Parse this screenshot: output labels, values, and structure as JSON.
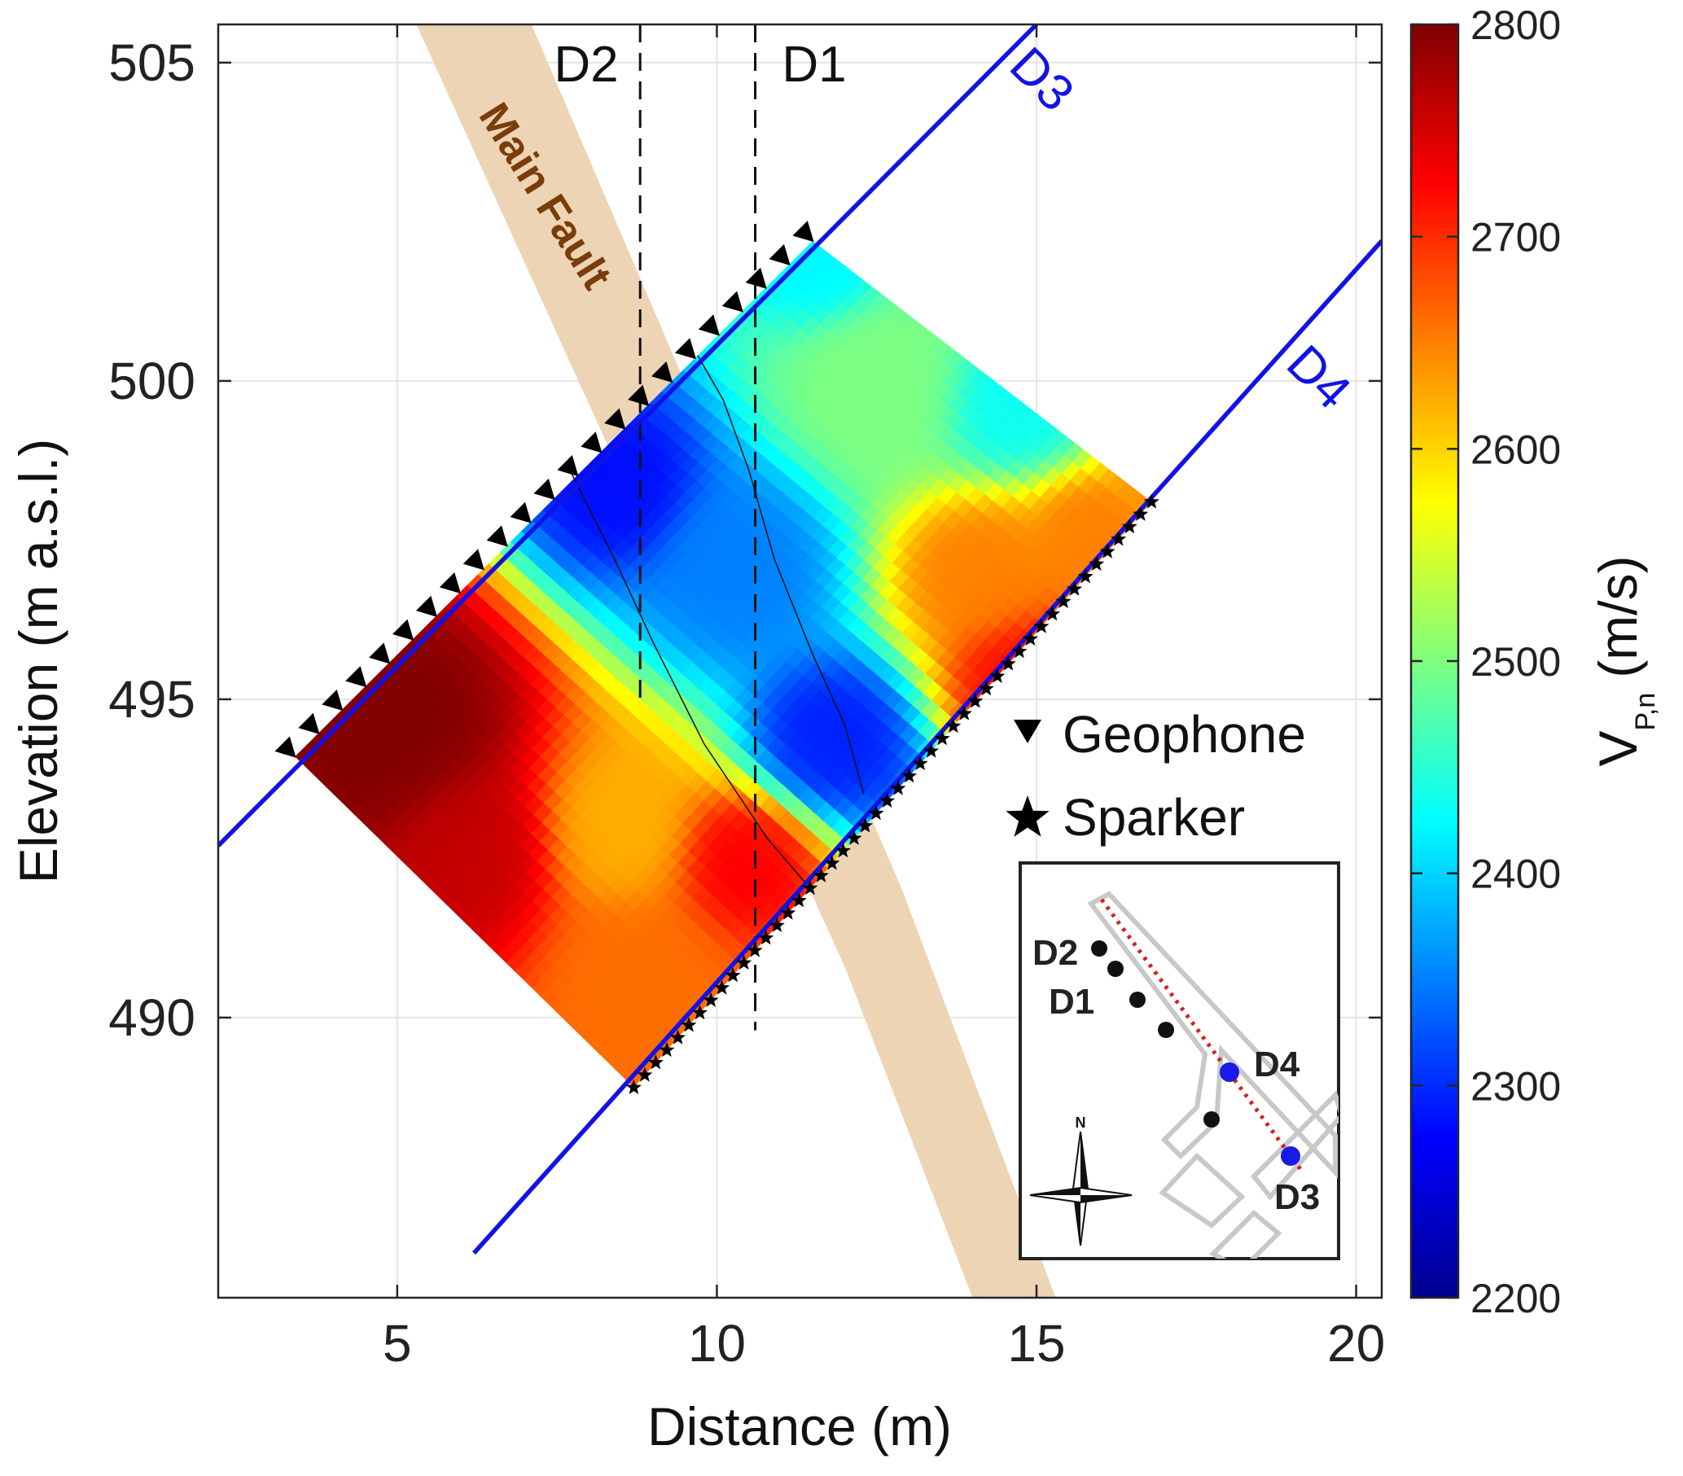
{
  "chart_data": {
    "type": "heatmap",
    "title": "",
    "xlabel": "Distance (m)",
    "ylabel": "Elevation (m a.s.l.)",
    "xlim": [
      2.2,
      20.4
    ],
    "ylim": [
      485.6,
      505.6
    ],
    "x_ticks": [
      5,
      10,
      15,
      20
    ],
    "y_ticks": [
      490,
      495,
      500,
      505
    ],
    "grid": true,
    "colorbar": {
      "label_main": "V",
      "label_sub": "P,n",
      "label_unit": "(m/s)",
      "range": [
        2200,
        2800
      ],
      "ticks": [
        2200,
        2300,
        2400,
        2500,
        2600,
        2700,
        2800
      ],
      "colormap": "jet"
    },
    "panel": {
      "geophone_start": [
        3.4,
        494.1
      ],
      "geophone_end": [
        11.5,
        502.2
      ],
      "sparker_start": [
        8.7,
        488.9
      ],
      "sparker_end": [
        16.8,
        498.1
      ]
    },
    "velocity_anomalies": [
      {
        "x": 5.0,
        "y": 494.5,
        "v": 2800,
        "r": 1.6
      },
      {
        "x": 6.2,
        "y": 492.7,
        "v": 2760,
        "r": 1.3
      },
      {
        "x": 8.4,
        "y": 493.0,
        "v": 2620,
        "r": 1.2
      },
      {
        "x": 10.5,
        "y": 492.5,
        "v": 2730,
        "r": 1.0
      },
      {
        "x": 8.7,
        "y": 490.6,
        "v": 2660,
        "r": 1.2
      },
      {
        "x": 8.5,
        "y": 498.3,
        "v": 2280,
        "r": 1.1
      },
      {
        "x": 10.3,
        "y": 497.1,
        "v": 2350,
        "r": 1.3
      },
      {
        "x": 11.8,
        "y": 494.3,
        "v": 2290,
        "r": 1.1
      },
      {
        "x": 12.5,
        "y": 499.9,
        "v": 2500,
        "r": 1.4
      },
      {
        "x": 11.6,
        "y": 501.8,
        "v": 2420,
        "r": 0.9
      },
      {
        "x": 14.6,
        "y": 499.6,
        "v": 2430,
        "r": 1.0
      },
      {
        "x": 14.1,
        "y": 497.0,
        "v": 2650,
        "r": 1.1
      },
      {
        "x": 15.8,
        "y": 497.6,
        "v": 2650,
        "r": 0.8
      },
      {
        "x": 14.8,
        "y": 495.3,
        "v": 2720,
        "r": 1.0
      }
    ],
    "tomography_velocity_range": [
      2200,
      2800
    ],
    "boreholes": [
      {
        "label": "D2",
        "x": 8.8,
        "y_top": 505.6,
        "y_bottom": 494.9,
        "style": "dashed"
      },
      {
        "label": "D1",
        "x": 10.6,
        "y_top": 505.6,
        "y_bottom": 489.8,
        "style": "dashed"
      }
    ],
    "boreholes_inclined": [
      {
        "label": "D3",
        "x0": 2.2,
        "y0": 492.7,
        "x1": 15.0,
        "y1": 505.6
      },
      {
        "label": "D4",
        "x0": 6.2,
        "y0": 486.3,
        "x1": 20.4,
        "y1": 502.2
      }
    ],
    "main_fault": {
      "label": "Main Fault",
      "color": "#ecd4b5",
      "polygon": [
        [
          5.3,
          505.6
        ],
        [
          7.1,
          505.6
        ],
        [
          12.9,
          492.0
        ],
        [
          15.3,
          485.6
        ],
        [
          14.0,
          485.6
        ],
        [
          12.0,
          490.8
        ]
      ]
    },
    "contours": [
      [
        [
          7.7,
          498.6
        ],
        [
          8.4,
          497.2
        ],
        [
          9.0,
          495.9
        ],
        [
          9.8,
          494.3
        ],
        [
          10.8,
          492.8
        ],
        [
          11.4,
          492.1
        ]
      ],
      [
        [
          9.7,
          500.4
        ],
        [
          10.1,
          499.7
        ],
        [
          10.5,
          498.6
        ],
        [
          10.9,
          497.2
        ],
        [
          11.5,
          495.7
        ],
        [
          12.0,
          494.6
        ],
        [
          12.3,
          493.5
        ]
      ]
    ],
    "legend": [
      {
        "marker": "triangle-down",
        "label": "Geophone"
      },
      {
        "marker": "star",
        "label": "Sparker"
      }
    ]
  },
  "inset": {
    "labels": [
      "D2",
      "D1",
      "D4",
      "D3"
    ],
    "compass": "N"
  },
  "labels": {
    "d1": "D1",
    "d2": "D2",
    "d3": "D3",
    "d4": "D4",
    "main_fault": "Main Fault"
  },
  "colors": {
    "borehole_line": "#1212e6",
    "fault": "#ecd4b5",
    "fault_text": "#7a3c0a",
    "inset_blue": "#1a1ae6",
    "inset_red": "#d42020"
  }
}
